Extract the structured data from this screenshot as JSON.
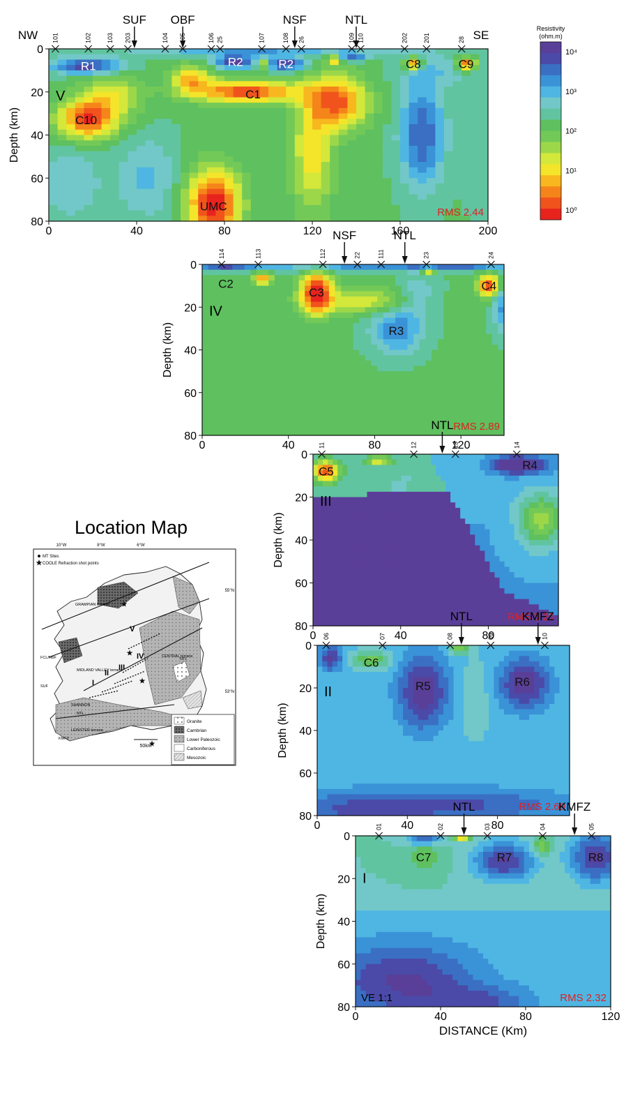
{
  "colors": {
    "scale": [
      "#e8231e",
      "#f0541c",
      "#f5851a",
      "#f8b71f",
      "#f4e52a",
      "#d3e83a",
      "#9cd74a",
      "#73c957",
      "#5ec05f",
      "#61c4a0",
      "#72c8c8",
      "#4fb6e3",
      "#3a92d7",
      "#3a6fc3",
      "#4b4aa8",
      "#5a3f98"
    ],
    "frame": "#111111",
    "rms": "#e02020",
    "label": "#111111"
  },
  "colorbar": {
    "title_line1": "Resistivity",
    "title_line2": "(ohm.m)",
    "ticks": [
      "10⁴",
      "10³",
      "10²",
      "10¹",
      "10⁰"
    ]
  },
  "panels": [
    {
      "id": "V",
      "xmax": 200,
      "ymax": 80,
      "xticks": [
        "0",
        "40",
        "80",
        "120",
        "160",
        "200"
      ],
      "yticks": [
        "0",
        "20",
        "40",
        "60",
        "80"
      ],
      "ylabel": "Depth (km)",
      "roman": "V",
      "rms": "RMS 2.44",
      "corner_left": "NW",
      "corner_right": "SE",
      "sites": [
        {
          "x": 3,
          "label": "101"
        },
        {
          "x": 18,
          "label": "102"
        },
        {
          "x": 28,
          "label": "103"
        },
        {
          "x": 36,
          "label": "203"
        },
        {
          "x": 53,
          "label": "104"
        },
        {
          "x": 61,
          "label": "105"
        },
        {
          "x": 74,
          "label": "106"
        },
        {
          "x": 78,
          "label": "25"
        },
        {
          "x": 97,
          "label": "107"
        },
        {
          "x": 108,
          "label": "108"
        },
        {
          "x": 115,
          "label": "26"
        },
        {
          "x": 138,
          "label": "109"
        },
        {
          "x": 142,
          "label": "110"
        },
        {
          "x": 162,
          "label": "202"
        },
        {
          "x": 172,
          "label": "201"
        },
        {
          "x": 188,
          "label": "28"
        }
      ],
      "faults": [
        {
          "x": 39,
          "label": "SUF"
        },
        {
          "x": 61,
          "label": "OBF"
        },
        {
          "x": 112,
          "label": "NSF"
        },
        {
          "x": 140,
          "label": "NTL"
        }
      ],
      "anomalies": [
        {
          "label": "R1",
          "x": 18,
          "y": 8
        },
        {
          "label": "R2",
          "x": 85,
          "y": 6
        },
        {
          "label": "R2",
          "x": 108,
          "y": 7
        },
        {
          "label": "C8",
          "x": 166,
          "y": 7
        },
        {
          "label": "C9",
          "x": 190,
          "y": 7
        },
        {
          "label": "C1",
          "x": 93,
          "y": 21
        },
        {
          "label": "C10",
          "x": 17,
          "y": 33
        },
        {
          "label": "UMC",
          "x": 75,
          "y": 73
        }
      ]
    },
    {
      "id": "IV",
      "xmax": 140,
      "ymax": 80,
      "xticks": [
        "0",
        "40",
        "80",
        "120"
      ],
      "yticks": [
        "0",
        "20",
        "40",
        "60",
        "80"
      ],
      "ylabel": "Depth (km)",
      "roman": "IV",
      "rms": "RMS 2.89",
      "sites": [
        {
          "x": 9,
          "label": "114"
        },
        {
          "x": 26,
          "label": "113"
        },
        {
          "x": 56,
          "label": "112"
        },
        {
          "x": 72,
          "label": "22"
        },
        {
          "x": 83,
          "label": "111"
        },
        {
          "x": 104,
          "label": "23"
        },
        {
          "x": 134,
          "label": "24"
        }
      ],
      "faults": [
        {
          "x": 66,
          "label": "NSF"
        },
        {
          "x": 94,
          "label": "NTL"
        }
      ],
      "anomalies": [
        {
          "label": "C2",
          "x": 11,
          "y": 9
        },
        {
          "label": "C3",
          "x": 53,
          "y": 13
        },
        {
          "label": "C4",
          "x": 133,
          "y": 10
        },
        {
          "label": "R3",
          "x": 90,
          "y": 31
        }
      ]
    },
    {
      "id": "III",
      "xmax": 112,
      "ymax": 80,
      "xticks": [
        "0",
        "40",
        "80"
      ],
      "yticks": [
        "0",
        "20",
        "40",
        "60",
        "80"
      ],
      "ylabel": "Depth (km)",
      "roman": "III",
      "rms": "RMS 3.20",
      "sites": [
        {
          "x": 4,
          "label": "11"
        },
        {
          "x": 46,
          "label": "12"
        },
        {
          "x": 65,
          "label": "13"
        },
        {
          "x": 93,
          "label": "14"
        }
      ],
      "faults": [
        {
          "x": 59,
          "label": "NTL"
        }
      ],
      "anomalies": [
        {
          "label": "C5",
          "x": 6,
          "y": 8
        },
        {
          "label": "R4",
          "x": 99,
          "y": 5
        }
      ]
    },
    {
      "id": "II",
      "xmax": 112,
      "ymax": 80,
      "xticks": [
        "0",
        "40",
        "80"
      ],
      "yticks": [
        "0",
        "20",
        "40",
        "60",
        "80"
      ],
      "ylabel": "Depth (km)",
      "roman": "II",
      "rms": "RMS 2.69",
      "sites": [
        {
          "x": 4,
          "label": "06"
        },
        {
          "x": 29,
          "label": "07"
        },
        {
          "x": 59,
          "label": "08"
        },
        {
          "x": 77,
          "label": "09"
        },
        {
          "x": 101,
          "label": "10"
        }
      ],
      "faults": [
        {
          "x": 64,
          "label": "NTL"
        },
        {
          "x": 98,
          "label": "KMFZ"
        }
      ],
      "anomalies": [
        {
          "label": "C6",
          "x": 24,
          "y": 8
        },
        {
          "label": "R5",
          "x": 47,
          "y": 19
        },
        {
          "label": "R6",
          "x": 91,
          "y": 17
        }
      ]
    },
    {
      "id": "I",
      "xmax": 120,
      "ymax": 80,
      "xticks": [
        "0",
        "40",
        "80",
        "120"
      ],
      "yticks": [
        "0",
        "20",
        "40",
        "60",
        "80"
      ],
      "ylabel": "Depth (km)",
      "roman": "I",
      "rms": "RMS 2.32",
      "ve": "VE 1:1",
      "xlabel": "DISTANCE (Km)",
      "sites": [
        {
          "x": 11,
          "label": "01"
        },
        {
          "x": 40,
          "label": "02"
        },
        {
          "x": 62,
          "label": "03"
        },
        {
          "x": 88,
          "label": "04"
        },
        {
          "x": 111,
          "label": "05"
        }
      ],
      "faults": [
        {
          "x": 51,
          "label": "NTL"
        },
        {
          "x": 103,
          "label": "KMFZ"
        }
      ],
      "anomalies": [
        {
          "label": "C7",
          "x": 32,
          "y": 10
        },
        {
          "label": "R7",
          "x": 70,
          "y": 10
        },
        {
          "label": "R8",
          "x": 113,
          "y": 10
        }
      ]
    }
  ],
  "map": {
    "title": "Location Map",
    "legend_sites": "MT Sites",
    "legend_shots": "COOLE Refraction shot points",
    "lon_labels": [
      "10°W",
      "8°W",
      "6°W"
    ],
    "lat_labels": [
      "55°N",
      "53°N"
    ],
    "place_labels": [
      "GRAMPIAN terrane",
      "FCL/HBF",
      "MIDLAND VALLEY terrane",
      "CENTRAL terrane",
      "SUF",
      "SHANNON",
      "NTL",
      "LEINSTER terrane",
      "KMFZ",
      "NTL",
      "V",
      "IV",
      "III",
      "II",
      "I"
    ],
    "scale_label": "50km",
    "geo_legend": [
      "Granite",
      "Cambrian",
      "Lower Paleozoic",
      "Carboniferous",
      "Mesozoic"
    ]
  }
}
